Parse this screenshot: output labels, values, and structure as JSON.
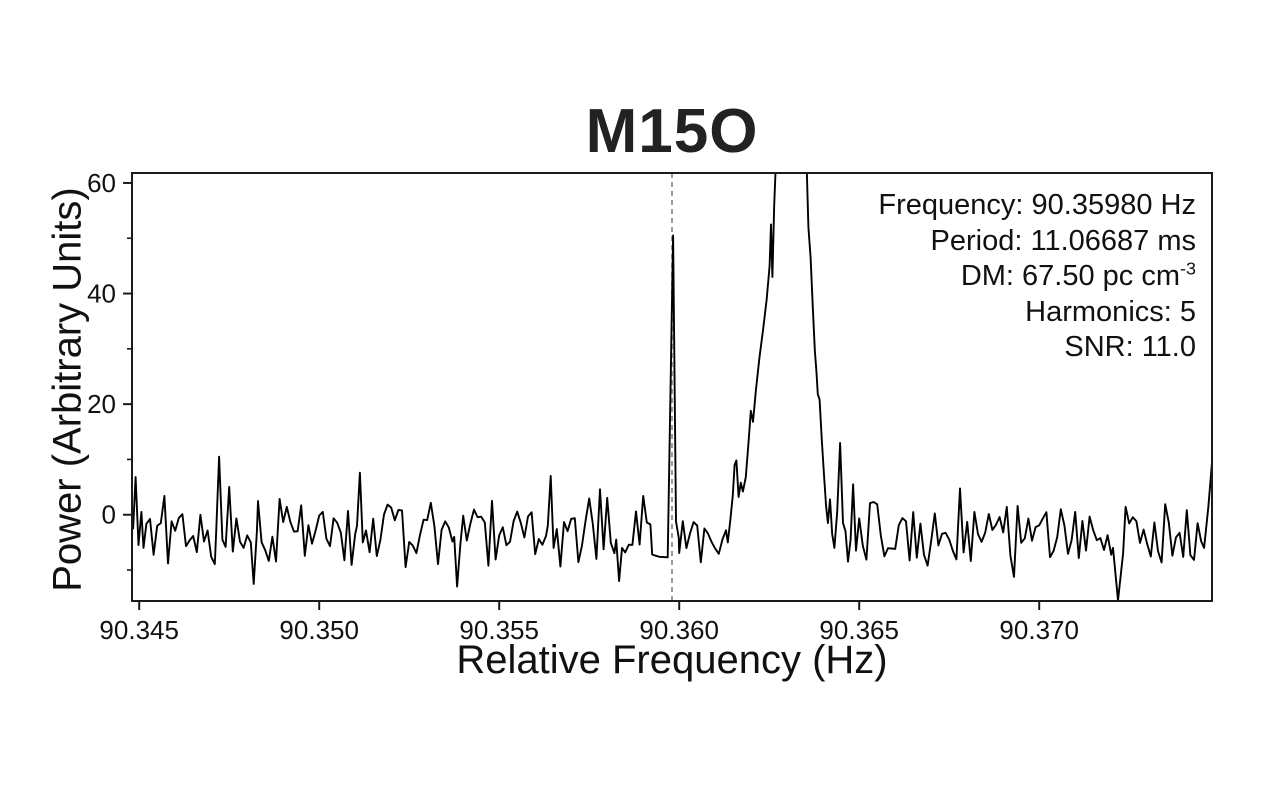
{
  "figure": {
    "title": "M15O"
  },
  "annotation": {
    "lines": [
      {
        "text": "Frequency: 90.35980 Hz",
        "sup": ""
      },
      {
        "text": "Period: 11.06687 ms",
        "sup": ""
      },
      {
        "text": "DM: 67.50 pc cm",
        "sup": "-3"
      },
      {
        "text": "Harmonics: 5",
        "sup": ""
      },
      {
        "text": "SNR: 11.0",
        "sup": ""
      }
    ]
  },
  "detection": {
    "frequency_hz": 90.3598,
    "period_ms": 11.06687,
    "dm_pc_cm3": 67.5,
    "harmonics": 5,
    "snr": 11.0
  },
  "chart_data": {
    "type": "line",
    "title": "M15O",
    "xlabel": "Relative Frequency (Hz)",
    "ylabel": "Power (Arbitrary Units)",
    "xlim": [
      90.3448,
      90.3748
    ],
    "ylim": [
      -15.6,
      61.8
    ],
    "x_ticks": [
      90.345,
      90.35,
      90.355,
      90.36,
      90.365,
      90.37
    ],
    "x_tick_labels": [
      "90.345",
      "90.350",
      "90.355",
      "90.360",
      "90.365",
      "90.370"
    ],
    "y_ticks": [
      0,
      20,
      40,
      60
    ],
    "y_tick_labels": [
      "0",
      "20",
      "40",
      "60"
    ],
    "y_minor_ticks": [
      -10,
      10,
      30,
      50
    ],
    "grid": false,
    "legend": false,
    "line_color": "#000000",
    "marker_line": {
      "x": 90.3598,
      "style": "dashed",
      "color": "#8f8f8f"
    },
    "peaks": {
      "candidate_spike": {
        "x": 90.35983,
        "height": 50.5
      },
      "main_peak": {
        "x_center": 90.3631,
        "clipped_above": 61.8
      }
    },
    "series": [
      {
        "name": "power-spectrum",
        "x_start": 90.3448,
        "dx": 0.0001,
        "n_points": 301,
        "noise": {
          "mean": -3.2,
          "spread_a": 8.5,
          "spread_b": 5.0,
          "min": -13.8,
          "max": 10.5,
          "seed": 987654321
        },
        "segments": [
          [
            [
              90.34483,
              -2.5
            ],
            [
              90.3449,
              6.8
            ],
            [
              90.34498,
              -5.5
            ],
            [
              90.34506,
              0.5
            ],
            [
              90.34512,
              -6.0
            ]
          ],
          [
            [
              90.34714,
              -3.0
            ],
            [
              90.34722,
              10.5
            ],
            [
              90.34731,
              -4.5
            ]
          ],
          [
            [
              90.3481,
              -5.0
            ],
            [
              90.34818,
              -12.5
            ],
            [
              90.34827,
              -3.0
            ]
          ],
          [
            [
              90.35105,
              -2.0
            ],
            [
              90.35113,
              7.6
            ],
            [
              90.35121,
              -5.0
            ]
          ],
          [
            [
              90.35375,
              -4.0
            ],
            [
              90.35383,
              -13.0
            ],
            [
              90.35392,
              -5.5
            ]
          ],
          [
            [
              90.35635,
              -2.0
            ],
            [
              90.35643,
              7.0
            ],
            [
              90.35651,
              -6.0
            ]
          ],
          [
            [
              90.35825,
              -4.5
            ],
            [
              90.35833,
              -12.0
            ],
            [
              90.35841,
              -6.0
            ]
          ],
          [
            [
              90.35925,
              -7.2
            ],
            [
              90.35945,
              -7.6
            ],
            [
              90.35968,
              -7.7
            ],
            [
              90.35983,
              50.5
            ],
            [
              90.35991,
              -1.2
            ],
            [
              90.35999,
              -4.2
            ]
          ],
          [
            [
              90.36135,
              -5.0
            ],
            [
              90.36142,
              -1.0
            ],
            [
              90.36149,
              3.5
            ],
            [
              90.36154,
              9.0
            ],
            [
              90.36159,
              9.8
            ],
            [
              90.36165,
              3.2
            ],
            [
              90.36171,
              5.8
            ],
            [
              90.36177,
              4.2
            ],
            [
              90.36185,
              6.8
            ],
            [
              90.36193,
              13.5
            ],
            [
              90.36199,
              18.8
            ],
            [
              90.36205,
              16.8
            ],
            [
              90.36213,
              22.5
            ],
            [
              90.36223,
              28.5
            ],
            [
              90.36233,
              33.5
            ],
            [
              90.36243,
              39.0
            ],
            [
              90.36251,
              45.0
            ],
            [
              90.36255,
              52.5
            ],
            [
              90.36259,
              43.0
            ],
            [
              90.36264,
              56.0
            ],
            [
              90.36271,
              68.0
            ],
            [
              90.36352,
              68.0
            ],
            [
              90.36359,
              52.0
            ],
            [
              90.36365,
              46.5
            ],
            [
              90.36371,
              37.5
            ],
            [
              90.36377,
              29.5
            ],
            [
              90.36381,
              26.0
            ],
            [
              90.36385,
              21.8
            ],
            [
              90.3639,
              20.8
            ],
            [
              90.36396,
              13.5
            ],
            [
              90.36402,
              7.5
            ],
            [
              90.36408,
              1.5
            ],
            [
              90.36413,
              -1.5
            ],
            [
              90.36419,
              2.8
            ],
            [
              90.36425,
              -3.5
            ],
            [
              90.36431,
              -6.0
            ],
            [
              90.36439,
              0.5
            ],
            [
              90.36447,
              13.0
            ],
            [
              90.36455,
              -1.5
            ],
            [
              90.36462,
              -3.0
            ],
            [
              90.36469,
              -8.5
            ],
            [
              90.36476,
              -4.5
            ],
            [
              90.36483,
              5.5
            ],
            [
              90.36491,
              -6.5
            ]
          ],
          [
            [
              90.37205,
              -6.0
            ],
            [
              90.37219,
              -15.5
            ],
            [
              90.37233,
              -7.0
            ]
          ],
          [
            [
              90.37458,
              -6.0
            ],
            [
              90.3747,
              1.5
            ],
            [
              90.3748,
              9.5
            ]
          ]
        ]
      }
    ]
  }
}
